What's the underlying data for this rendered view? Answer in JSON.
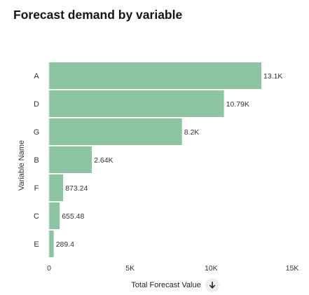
{
  "header": {
    "title": "Forecast demand by variable"
  },
  "sort_icon": "arrow-down-icon",
  "chart_data": {
    "type": "bar",
    "orientation": "horizontal",
    "categories": [
      "A",
      "D",
      "G",
      "B",
      "F",
      "C",
      "E"
    ],
    "values": [
      13100,
      10790,
      8200,
      2640,
      873.24,
      655.48,
      289.4
    ],
    "data_labels": [
      "13.1K",
      "10.79K",
      "8.2K",
      "2.64K",
      "873.24",
      "655.48",
      "289.4"
    ],
    "title": "Forecast demand by variable",
    "xlabel": "Total Forecast Value",
    "ylabel": "Variable Name",
    "xlim": [
      0,
      15000
    ],
    "x_ticks": [
      0,
      5000,
      10000,
      15000
    ],
    "x_tick_labels": [
      "0",
      "5K",
      "10K",
      "15K"
    ],
    "grid": false,
    "legend": "none",
    "bar_color": "#8dc5a3"
  }
}
